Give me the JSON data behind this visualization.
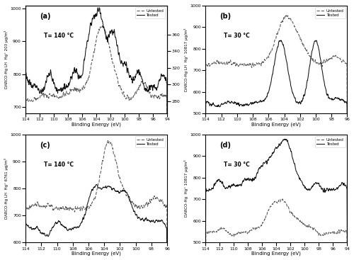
{
  "figsize": [
    5.0,
    3.67
  ],
  "dpi": 100,
  "panels": [
    {
      "label": "(a)",
      "temp": "T= 140 °C",
      "ylabel": "DARCO-Hg LH  Hg° 203 μg/m³",
      "xlim": [
        94,
        114
      ],
      "ylim_left": [
        680,
        1010
      ],
      "ylim_right": [
        265,
        395
      ],
      "yticks_left": [
        700,
        800,
        900,
        1000
      ],
      "yticks_right": [
        280,
        300,
        320,
        340,
        360
      ],
      "dual_axis": true
    },
    {
      "label": "(b)",
      "temp": "T= 30 °C",
      "ylabel": "DARCO-Hg LH  Hg° 10817 μg/m³",
      "xlim": [
        96,
        114
      ],
      "ylim": [
        500,
        1000
      ],
      "yticks": [
        500,
        600,
        700,
        800,
        900,
        1000
      ],
      "dual_axis": false
    },
    {
      "label": "(c)",
      "temp": "T= 140 °C",
      "ylabel": "DARCO-Hg LH  Hg° 6761 μg/m³",
      "xlim": [
        96,
        114
      ],
      "ylim": [
        600,
        1000
      ],
      "yticks": [
        600,
        700,
        800,
        900,
        1000
      ],
      "dual_axis": false
    },
    {
      "label": "(d)",
      "temp": "T= 30 °C",
      "ylabel": "DARCO-Hg  Hg° 10817 μg/m³",
      "xlim": [
        94,
        114
      ],
      "ylim": [
        500,
        1000
      ],
      "yticks": [
        500,
        600,
        700,
        800,
        900,
        1000
      ],
      "dual_axis": false
    }
  ],
  "xlabel": "Binding Energy (eV)",
  "legend_untested": "Untested",
  "legend_tested": "Tested",
  "line_color_untested": "#555555",
  "line_color_tested": "#111111"
}
